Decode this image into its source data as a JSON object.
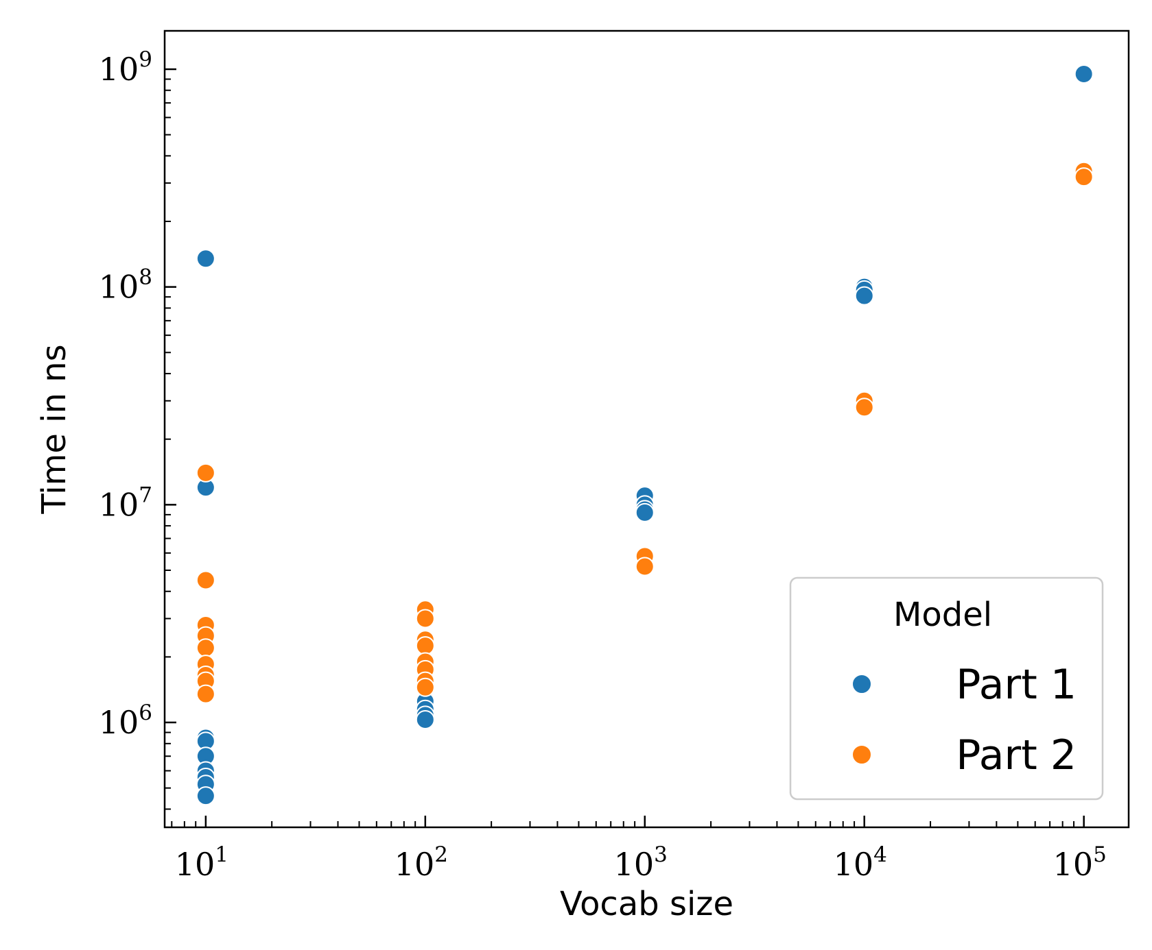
{
  "chart_data": {
    "type": "scatter",
    "xlabel": "Vocab size",
    "ylabel": "Time in ns",
    "xscale": "log",
    "yscale": "log",
    "xlim": [
      6.5,
      160000
    ],
    "ylim": [
      330000,
      1500000000
    ],
    "xticks": [
      {
        "base": "10",
        "exp": "1",
        "value": 10
      },
      {
        "base": "10",
        "exp": "2",
        "value": 100
      },
      {
        "base": "10",
        "exp": "3",
        "value": 1000
      },
      {
        "base": "10",
        "exp": "4",
        "value": 10000
      },
      {
        "base": "10",
        "exp": "5",
        "value": 100000
      }
    ],
    "yticks": [
      {
        "base": "10",
        "exp": "6",
        "value": 1000000
      },
      {
        "base": "10",
        "exp": "7",
        "value": 10000000
      },
      {
        "base": "10",
        "exp": "8",
        "value": 100000000
      },
      {
        "base": "10",
        "exp": "9",
        "value": 1000000000
      }
    ],
    "grid": false,
    "legend": {
      "title": "Model",
      "position": "bottom-right"
    },
    "series": [
      {
        "name": "Part 1",
        "color": "#1f77b4",
        "points": [
          [
            10,
            135000000
          ],
          [
            10,
            12000000
          ],
          [
            10,
            850000
          ],
          [
            10,
            820000
          ],
          [
            10,
            700000
          ],
          [
            10,
            600000
          ],
          [
            10,
            560000
          ],
          [
            10,
            520000
          ],
          [
            10,
            460000
          ],
          [
            100,
            1250000
          ],
          [
            100,
            1150000
          ],
          [
            100,
            1080000
          ],
          [
            100,
            1030000
          ],
          [
            1000,
            11000000
          ],
          [
            1000,
            10000000
          ],
          [
            1000,
            9500000
          ],
          [
            1000,
            9200000
          ],
          [
            10000,
            100000000
          ],
          [
            10000,
            97000000
          ],
          [
            10000,
            91000000
          ],
          [
            100000,
            950000000
          ]
        ]
      },
      {
        "name": "Part 2",
        "color": "#ff7f0e",
        "points": [
          [
            10,
            14000000
          ],
          [
            10,
            4500000
          ],
          [
            10,
            2800000
          ],
          [
            10,
            2500000
          ],
          [
            10,
            2200000
          ],
          [
            10,
            1850000
          ],
          [
            10,
            1650000
          ],
          [
            10,
            1550000
          ],
          [
            10,
            1350000
          ],
          [
            100,
            3300000
          ],
          [
            100,
            3000000
          ],
          [
            100,
            2400000
          ],
          [
            100,
            2250000
          ],
          [
            100,
            1900000
          ],
          [
            100,
            1750000
          ],
          [
            100,
            1550000
          ],
          [
            100,
            1450000
          ],
          [
            1000,
            5800000
          ],
          [
            1000,
            5200000
          ],
          [
            10000,
            30000000
          ],
          [
            10000,
            28000000
          ],
          [
            100000,
            340000000
          ],
          [
            100000,
            320000000
          ]
        ]
      }
    ]
  }
}
